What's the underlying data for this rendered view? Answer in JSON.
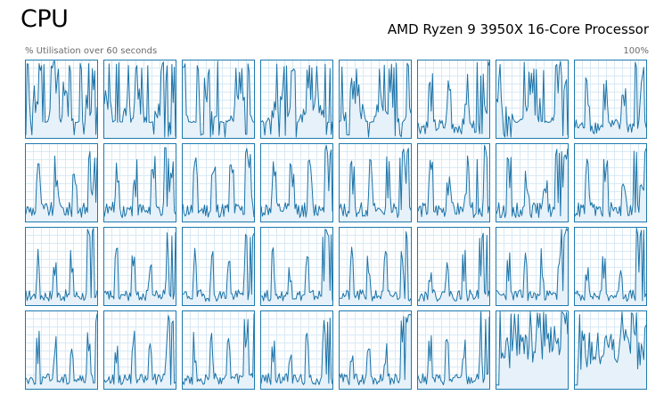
{
  "header": {
    "title": "CPU",
    "processor_name": "AMD Ryzen 9 3950X 16-Core Processor"
  },
  "graph_caption": {
    "left": "% Utilisation over 60 seconds",
    "right": "100%"
  },
  "colors": {
    "line": "#1b73a8",
    "fill": "#e6f1f9",
    "border": "#1d7ab0",
    "grid": "#d9eaf5"
  },
  "chart_data": {
    "type": "area",
    "ylim": [
      0,
      100
    ],
    "rows": 4,
    "cols": 8,
    "note_pattern_profiles": [
      "busy",
      "spiky",
      "late-peak",
      "noisy"
    ],
    "cells": [
      {
        "profile": "busy",
        "seed": 1
      },
      {
        "profile": "busy",
        "seed": 2
      },
      {
        "profile": "busy",
        "seed": 3
      },
      {
        "profile": "busy",
        "seed": 4
      },
      {
        "profile": "busy",
        "seed": 5
      },
      {
        "profile": "spiky",
        "seed": 6
      },
      {
        "profile": "busy",
        "seed": 7
      },
      {
        "profile": "spiky",
        "seed": 8
      },
      {
        "profile": "spiky",
        "seed": 9
      },
      {
        "profile": "spiky",
        "seed": 10
      },
      {
        "profile": "spiky",
        "seed": 11
      },
      {
        "profile": "spiky",
        "seed": 12
      },
      {
        "profile": "spiky",
        "seed": 13
      },
      {
        "profile": "spiky",
        "seed": 14
      },
      {
        "profile": "spiky",
        "seed": 15
      },
      {
        "profile": "spiky",
        "seed": 16
      },
      {
        "profile": "late-peak",
        "seed": 17
      },
      {
        "profile": "late-peak",
        "seed": 18
      },
      {
        "profile": "late-peak",
        "seed": 19
      },
      {
        "profile": "late-peak",
        "seed": 20
      },
      {
        "profile": "late-peak",
        "seed": 21
      },
      {
        "profile": "late-peak",
        "seed": 22
      },
      {
        "profile": "late-peak",
        "seed": 23
      },
      {
        "profile": "late-peak",
        "seed": 24
      },
      {
        "profile": "late-peak",
        "seed": 25
      },
      {
        "profile": "late-peak",
        "seed": 26
      },
      {
        "profile": "late-peak",
        "seed": 27
      },
      {
        "profile": "late-peak",
        "seed": 28
      },
      {
        "profile": "late-peak",
        "seed": 29
      },
      {
        "profile": "late-peak",
        "seed": 30
      },
      {
        "profile": "noisy",
        "seed": 31
      },
      {
        "profile": "noisy",
        "seed": 32
      }
    ]
  }
}
